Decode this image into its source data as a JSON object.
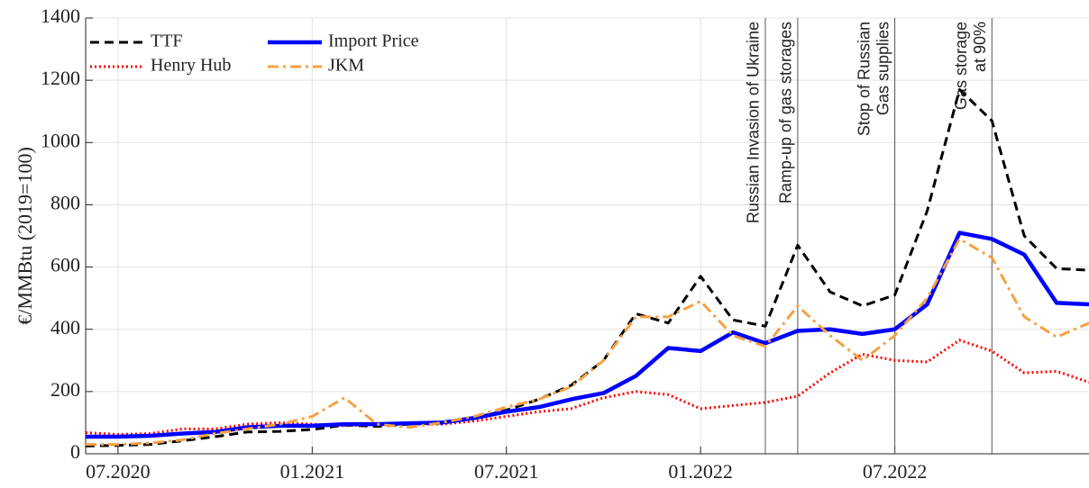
{
  "chart_data": {
    "type": "line",
    "ylabel": "€/MMBtu (2019=100)",
    "x": [
      "2020-06",
      "2020-07",
      "2020-08",
      "2020-09",
      "2020-10",
      "2020-11",
      "2020-12",
      "2021-01",
      "2021-02",
      "2021-03",
      "2021-04",
      "2021-05",
      "2021-06",
      "2021-07",
      "2021-08",
      "2021-09",
      "2021-10",
      "2021-11",
      "2021-12",
      "2022-01",
      "2022-02",
      "2022-03",
      "2022-04",
      "2022-05",
      "2022-06",
      "2022-07",
      "2022-08",
      "2022-09",
      "2022-10",
      "2022-11",
      "2022-12",
      "2023-01"
    ],
    "xlim": [
      "2020-06",
      "2023-01"
    ],
    "xticks": [
      {
        "value": "2020-07",
        "label": "07.2020"
      },
      {
        "value": "2021-01",
        "label": "01.2021"
      },
      {
        "value": "2021-07",
        "label": "07.2021"
      },
      {
        "value": "2022-01",
        "label": "01.2022"
      },
      {
        "value": "2022-07",
        "label": "07.2022"
      }
    ],
    "ylim": [
      0,
      1400
    ],
    "yticks": [
      0,
      200,
      400,
      600,
      800,
      1000,
      1200,
      1400
    ],
    "grid": true,
    "legend": "upper left",
    "series": [
      {
        "name": "TTF",
        "color": "#000000",
        "style": "dashed",
        "values": [
          25,
          27,
          30,
          42,
          55,
          70,
          72,
          78,
          92,
          88,
          95,
          100,
          115,
          140,
          175,
          220,
          300,
          450,
          420,
          570,
          430,
          410,
          670,
          520,
          475,
          510,
          780,
          1170,
          1070,
          700,
          595,
          590
        ]
      },
      {
        "name": "Henry Hub",
        "color": "#ff0000",
        "style": "dotted",
        "values": [
          68,
          62,
          65,
          80,
          80,
          95,
          100,
          95,
          90,
          95,
          95,
          95,
          105,
          120,
          135,
          145,
          180,
          200,
          190,
          145,
          155,
          165,
          185,
          260,
          320,
          300,
          295,
          365,
          330,
          260,
          265,
          230
        ]
      },
      {
        "name": "Import Price",
        "color": "#0000ff",
        "style": "solid",
        "values": [
          55,
          55,
          58,
          65,
          70,
          85,
          90,
          90,
          95,
          95,
          98,
          100,
          115,
          135,
          150,
          175,
          195,
          250,
          340,
          330,
          390,
          355,
          395,
          400,
          385,
          400,
          480,
          710,
          690,
          640,
          485,
          480
        ]
      },
      {
        "name": "JKM",
        "color": "#f7a043",
        "style": "dashdot",
        "values": [
          30,
          30,
          35,
          45,
          65,
          80,
          95,
          120,
          180,
          95,
          85,
          100,
          120,
          150,
          175,
          215,
          300,
          440,
          440,
          490,
          380,
          345,
          475,
          380,
          300,
          380,
          500,
          690,
          630,
          440,
          375,
          420
        ]
      }
    ],
    "events": [
      {
        "x": "2022-03",
        "label": [
          "Russian Invasion of Ukraine"
        ]
      },
      {
        "x": "2022-04",
        "label": [
          "Ramp-up of gas storages"
        ]
      },
      {
        "x": "2022-07",
        "label": [
          "Stop of Russian",
          "Gas supplies"
        ]
      },
      {
        "x": "2022-10",
        "label": [
          "Gas storage",
          "at 90%"
        ]
      }
    ]
  }
}
